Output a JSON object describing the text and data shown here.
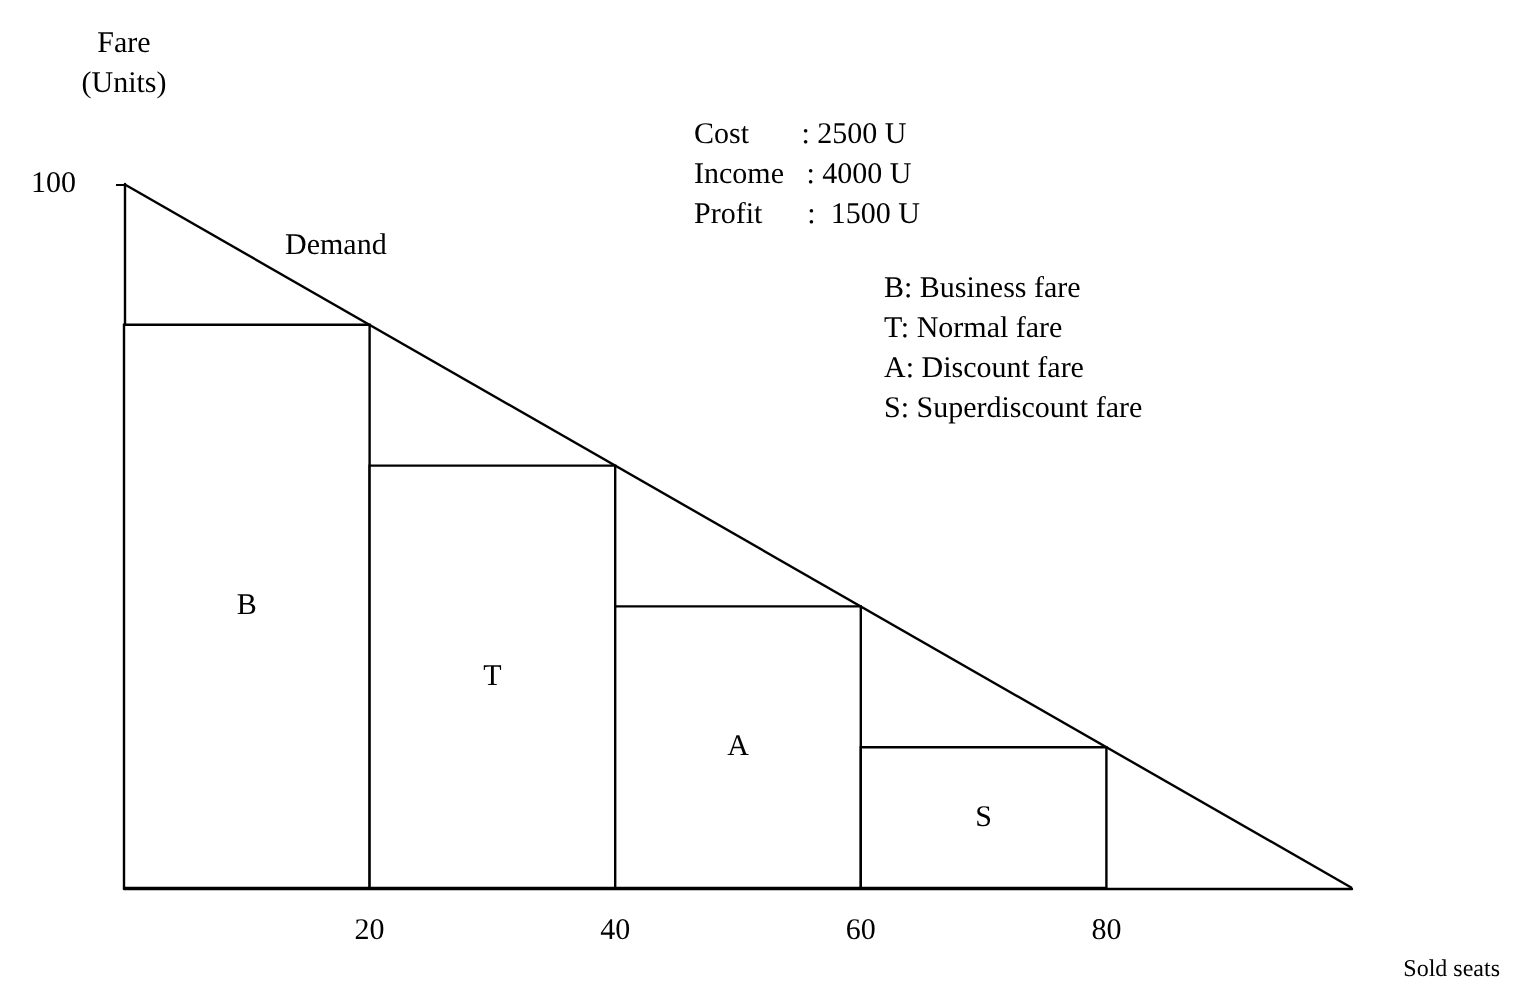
{
  "chart_data": {
    "type": "bar",
    "xlabel": "Sold seats",
    "ylabel": "Fare\n(Units)",
    "xlim": [
      0,
      100
    ],
    "xticks": [
      20,
      40,
      60,
      80
    ],
    "ylim": [
      0,
      100
    ],
    "yticks": [
      100
    ],
    "grid": false,
    "legend": false,
    "series": [
      {
        "color": "#ffffff",
        "x": [
          10,
          30,
          50,
          70
        ],
        "values": [
          80,
          60,
          40,
          20
        ]
      },
      {
        "type": "line",
        "name": "Demand",
        "color": "#000000",
        "x": [
          0,
          100
        ],
        "values": [
          100,
          0
        ],
        "marker": "none",
        "line_style": "solid"
      }
    ],
    "annotations": [
      "B",
      "T",
      "A",
      "S",
      "Cost       : 2500 U",
      "Income   : 4000 U",
      "Profit      :  1500 U",
      "B: Business fare",
      "T: Normal fare",
      "A: Discount fare",
      "S: Superdiscount fare"
    ]
  }
}
